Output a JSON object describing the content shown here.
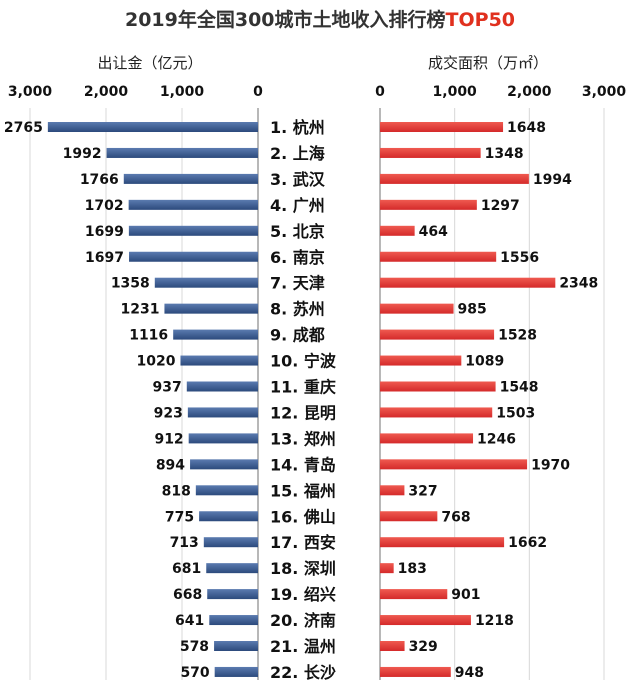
{
  "chart_data": {
    "type": "bar",
    "title_prefix": "2019年全国300城市土地收入排行榜",
    "title_highlight": "TOP50",
    "colors": {
      "left": "#2c4a7c",
      "right": "#d42a2a",
      "title_highlight": "#e0301e"
    },
    "left_axis": {
      "label": "出让金（亿元）",
      "ticks": [
        "3,000",
        "2,000",
        "1,000",
        "0"
      ],
      "xlim": [
        0,
        3000
      ],
      "direction": "reversed"
    },
    "right_axis": {
      "label": "成交面积（万㎡）",
      "ticks": [
        "0",
        "1,000",
        "2,000",
        "3,000"
      ],
      "xlim": [
        0,
        3000
      ]
    },
    "categories": [
      "1. 杭州",
      "2. 上海",
      "3. 武汉",
      "4. 广州",
      "5. 北京",
      "6. 南京",
      "7. 天津",
      "8. 苏州",
      "9. 成都",
      "10. 宁波",
      "11. 重庆",
      "12. 昆明",
      "13. 郑州",
      "14. 青岛",
      "15. 福州",
      "16. 佛山",
      "17. 西安",
      "18. 深圳",
      "19. 绍兴",
      "20. 济南",
      "21. 温州",
      "22. 长沙"
    ],
    "series": [
      {
        "name": "出让金（亿元）",
        "values": [
          2765,
          1992,
          1766,
          1702,
          1699,
          1697,
          1358,
          1231,
          1116,
          1020,
          937,
          923,
          912,
          894,
          818,
          775,
          713,
          681,
          668,
          641,
          578,
          570
        ]
      },
      {
        "name": "成交面积（万㎡）",
        "values": [
          1648,
          1348,
          1994,
          1297,
          464,
          1556,
          2348,
          985,
          1528,
          1089,
          1548,
          1503,
          1246,
          1970,
          327,
          768,
          1662,
          183,
          901,
          1218,
          329,
          948
        ]
      }
    ],
    "grid": true
  }
}
